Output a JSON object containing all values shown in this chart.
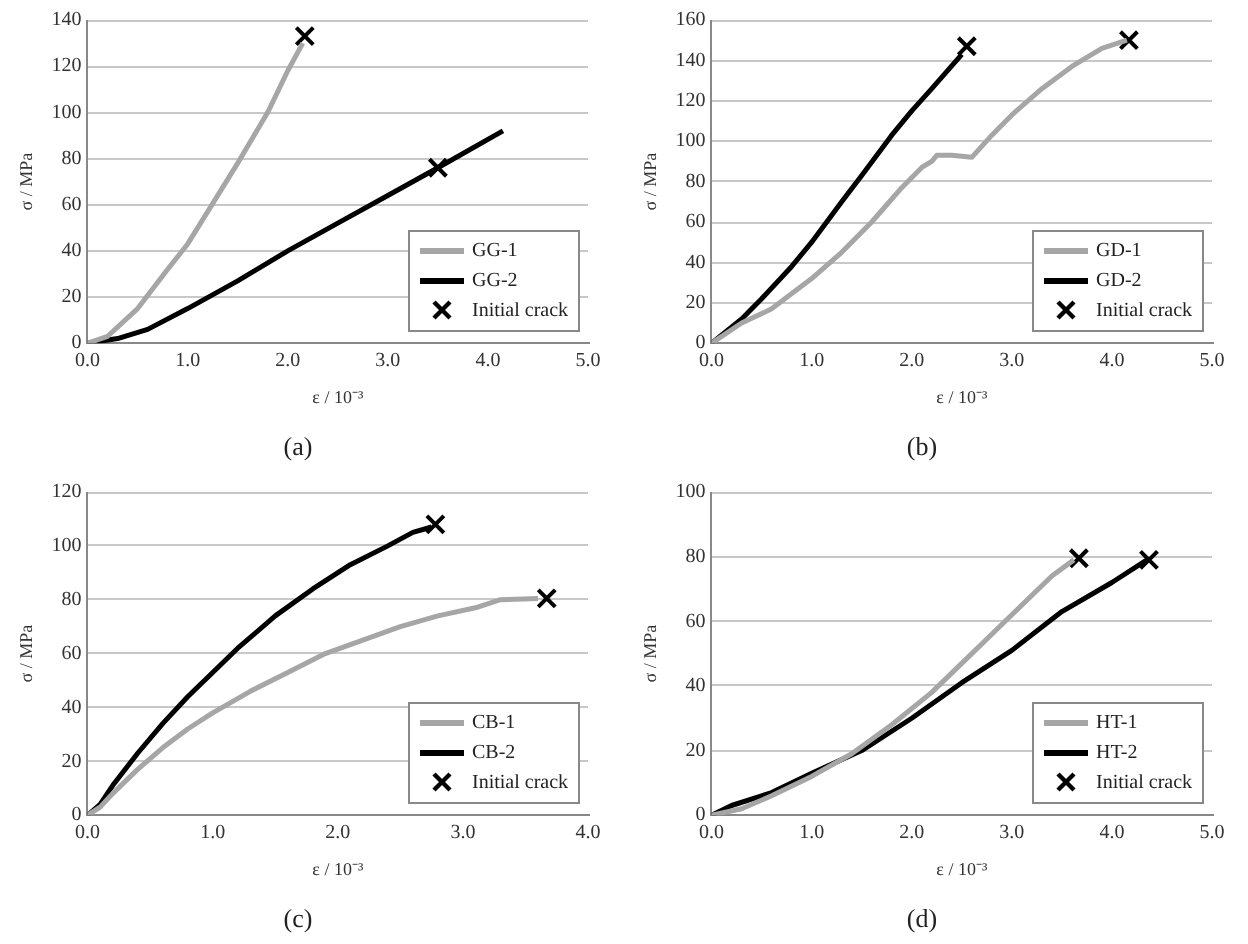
{
  "chart_data": [
    {
      "type": "line",
      "title": "(a)",
      "xlabel": "ε / 10⁻³",
      "ylabel": "σ / MPa",
      "xlim": [
        0,
        5
      ],
      "xticks": [
        {
          "value": 0,
          "label": "0.0"
        },
        {
          "value": 1,
          "label": "1.0"
        },
        {
          "value": 2,
          "label": "2.0"
        },
        {
          "value": 3,
          "label": "3.0"
        },
        {
          "value": 4,
          "label": "4.0"
        },
        {
          "value": 5,
          "label": "5.0"
        }
      ],
      "ylim": [
        0,
        140
      ],
      "yticks": [
        0,
        20,
        40,
        60,
        80,
        100,
        120,
        140
      ],
      "grid": "y",
      "legend": "bottom right",
      "line_style": "solid",
      "marker": "none",
      "series": [
        {
          "name": "GG-1",
          "color": "#a6a6a6",
          "x": [
            0,
            0.2,
            0.5,
            0.8,
            1.0,
            1.2,
            1.5,
            1.8,
            2.0,
            2.15
          ],
          "values": [
            0,
            3,
            15,
            32,
            43,
            57,
            78,
            100,
            118,
            130
          ]
        },
        {
          "name": "GG-2",
          "color": "#000000",
          "x": [
            0,
            0.3,
            0.6,
            1.0,
            1.5,
            2.0,
            2.5,
            3.0,
            3.5,
            4.15
          ],
          "values": [
            0,
            2,
            6,
            15,
            27,
            40,
            52,
            64,
            76,
            92
          ]
        },
        {
          "name": "Initial crack",
          "type": "scatter",
          "marker": "cross",
          "color": "#000000",
          "x": [
            2.17,
            3.5
          ],
          "values": [
            133,
            76
          ]
        }
      ]
    },
    {
      "type": "line",
      "title": "(b)",
      "xlabel": "ε / 10⁻³",
      "ylabel": "σ / MPa",
      "xlim": [
        0,
        5
      ],
      "xticks": [
        {
          "value": 0,
          "label": "0.0"
        },
        {
          "value": 1,
          "label": "1.0"
        },
        {
          "value": 2,
          "label": "2.0"
        },
        {
          "value": 3,
          "label": "3.0"
        },
        {
          "value": 4,
          "label": "4.0"
        },
        {
          "value": 5,
          "label": "5.0"
        }
      ],
      "ylim": [
        0,
        160
      ],
      "yticks": [
        0,
        20,
        40,
        60,
        80,
        100,
        120,
        140,
        160
      ],
      "grid": "y",
      "legend": "bottom right",
      "line_style": "solid",
      "marker": "none",
      "series": [
        {
          "name": "GD-1",
          "color": "#a6a6a6",
          "x": [
            0,
            0.3,
            0.6,
            1.0,
            1.3,
            1.6,
            1.9,
            2.1,
            2.2,
            2.25,
            2.4,
            2.6,
            2.8,
            3.0,
            3.3,
            3.6,
            3.9,
            4.15
          ],
          "values": [
            0,
            10,
            17,
            32,
            45,
            60,
            77,
            87,
            90,
            93,
            93,
            92,
            103,
            113,
            126,
            137,
            146,
            150
          ]
        },
        {
          "name": "GD-2",
          "color": "#000000",
          "x": [
            0,
            0.3,
            0.5,
            0.8,
            1.0,
            1.3,
            1.5,
            1.8,
            2.0,
            2.2,
            2.5
          ],
          "values": [
            0,
            12,
            22,
            38,
            50,
            70,
            83,
            103,
            115,
            126,
            143
          ]
        },
        {
          "name": "Initial crack",
          "type": "scatter",
          "marker": "cross",
          "color": "#000000",
          "x": [
            2.55,
            4.17
          ],
          "values": [
            147,
            150
          ]
        }
      ]
    },
    {
      "type": "line",
      "title": "(c)",
      "xlabel": "ε / 10⁻³",
      "ylabel": "σ / MPa",
      "xlim": [
        0,
        4
      ],
      "xticks": [
        {
          "value": 0,
          "label": "0.0"
        },
        {
          "value": 1,
          "label": "1.0"
        },
        {
          "value": 2,
          "label": "2.0"
        },
        {
          "value": 3,
          "label": "3.0"
        },
        {
          "value": 4,
          "label": "4.0"
        }
      ],
      "ylim": [
        0,
        120
      ],
      "yticks": [
        0,
        20,
        40,
        60,
        80,
        100,
        120
      ],
      "grid": "y",
      "legend": "bottom right",
      "line_style": "solid",
      "marker": "none",
      "series": [
        {
          "name": "CB-1",
          "color": "#a6a6a6",
          "x": [
            0,
            0.1,
            0.2,
            0.4,
            0.6,
            0.8,
            1.0,
            1.3,
            1.6,
            1.9,
            2.2,
            2.5,
            2.8,
            3.1,
            3.3,
            3.6
          ],
          "values": [
            0,
            3,
            8,
            17,
            25,
            32,
            38,
            46,
            53,
            60,
            65,
            70,
            74,
            77,
            80,
            80.5
          ]
        },
        {
          "name": "CB-2",
          "color": "#000000",
          "x": [
            0,
            0.1,
            0.2,
            0.4,
            0.6,
            0.8,
            1.0,
            1.2,
            1.5,
            1.8,
            2.1,
            2.4,
            2.6,
            2.75
          ],
          "values": [
            0,
            4,
            11,
            23,
            34,
            44,
            53,
            62,
            74,
            84,
            93,
            100,
            105,
            107
          ]
        },
        {
          "name": "Initial crack",
          "type": "scatter",
          "marker": "cross",
          "color": "#000000",
          "x": [
            2.78,
            3.67
          ],
          "values": [
            108,
            80.5
          ]
        }
      ]
    },
    {
      "type": "line",
      "title": "(d)",
      "xlabel": "ε / 10⁻³",
      "ylabel": "σ / MPa",
      "xlim": [
        0,
        5
      ],
      "xticks": [
        {
          "value": 0,
          "label": "0.0"
        },
        {
          "value": 1,
          "label": "1.0"
        },
        {
          "value": 2,
          "label": "2.0"
        },
        {
          "value": 3,
          "label": "3.0"
        },
        {
          "value": 4,
          "label": "4.0"
        },
        {
          "value": 5,
          "label": "5.0"
        }
      ],
      "ylim": [
        0,
        100
      ],
      "yticks": [
        0,
        20,
        40,
        60,
        80,
        100
      ],
      "grid": "y",
      "legend": "bottom right",
      "line_style": "solid",
      "marker": "none",
      "series": [
        {
          "name": "HT-1",
          "color": "#a6a6a6",
          "x": [
            0,
            0.3,
            0.6,
            1.0,
            1.4,
            1.8,
            2.2,
            2.6,
            3.0,
            3.4,
            3.62
          ],
          "values": [
            0,
            2,
            6,
            12,
            19,
            28,
            38,
            50,
            62,
            74,
            79
          ]
        },
        {
          "name": "HT-2",
          "color": "#000000",
          "x": [
            0,
            0.2,
            0.6,
            1.0,
            1.5,
            2.0,
            2.5,
            3.0,
            3.5,
            4.0,
            4.35
          ],
          "values": [
            0,
            3,
            7,
            13,
            20,
            30,
            41,
            51,
            63,
            72,
            79
          ]
        },
        {
          "name": "Initial crack",
          "type": "scatter",
          "marker": "cross",
          "color": "#000000",
          "x": [
            3.67,
            4.37
          ],
          "values": [
            79.5,
            79
          ]
        }
      ]
    }
  ]
}
